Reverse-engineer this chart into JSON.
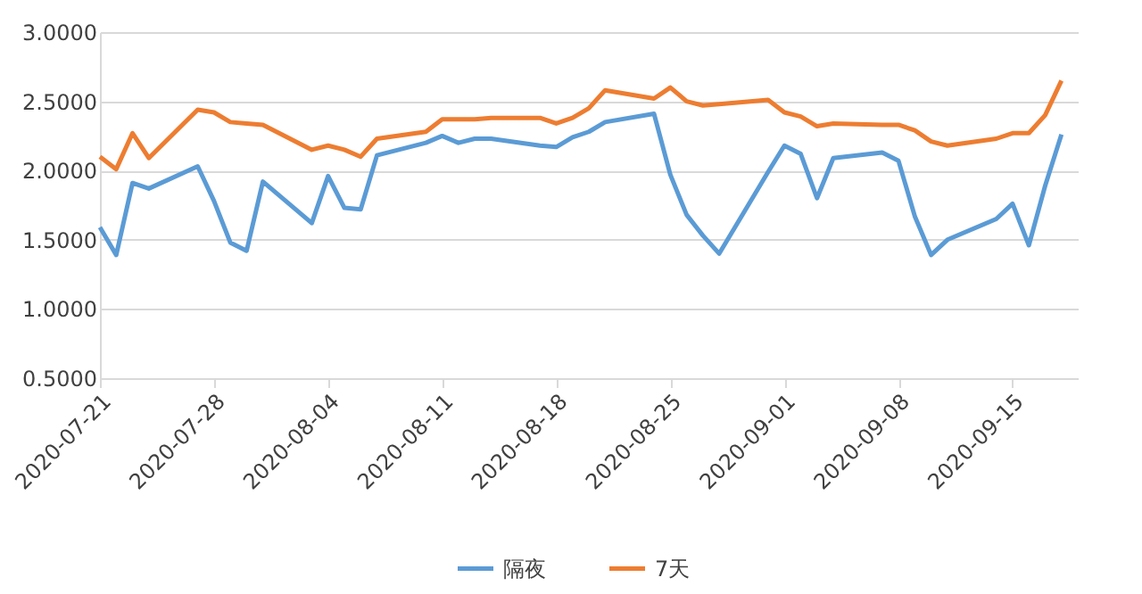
{
  "chart_data": {
    "type": "line",
    "x": [
      "2020-07-21",
      "2020-07-22",
      "2020-07-23",
      "2020-07-24",
      "2020-07-27",
      "2020-07-28",
      "2020-07-29",
      "2020-07-30",
      "2020-07-31",
      "2020-08-03",
      "2020-08-04",
      "2020-08-05",
      "2020-08-06",
      "2020-08-07",
      "2020-08-10",
      "2020-08-11",
      "2020-08-12",
      "2020-08-13",
      "2020-08-14",
      "2020-08-17",
      "2020-08-18",
      "2020-08-19",
      "2020-08-20",
      "2020-08-21",
      "2020-08-24",
      "2020-08-25",
      "2020-08-26",
      "2020-08-27",
      "2020-08-28",
      "2020-08-31",
      "2020-09-01",
      "2020-09-02",
      "2020-09-03",
      "2020-09-04",
      "2020-09-07",
      "2020-09-08",
      "2020-09-09",
      "2020-09-10",
      "2020-09-11",
      "2020-09-14",
      "2020-09-15",
      "2020-09-16",
      "2020-09-17",
      "2020-09-18"
    ],
    "series": [
      {
        "name": "隔夜",
        "color": "#5b9bd5",
        "values": [
          1.59,
          1.39,
          1.91,
          1.87,
          2.03,
          1.78,
          1.48,
          1.42,
          1.92,
          1.62,
          1.96,
          1.73,
          1.72,
          2.11,
          2.2,
          2.25,
          2.2,
          2.23,
          2.23,
          2.18,
          2.17,
          2.24,
          2.28,
          2.35,
          2.41,
          1.97,
          1.68,
          1.53,
          1.4,
          1.99,
          2.18,
          2.12,
          1.8,
          2.09,
          2.13,
          2.07,
          1.67,
          1.39,
          1.5,
          1.65,
          1.76,
          1.46,
          1.89,
          2.26
        ]
      },
      {
        "name": "7天",
        "color": "#ed7d31",
        "values": [
          2.1,
          2.01,
          2.27,
          2.09,
          2.44,
          2.42,
          2.35,
          2.34,
          2.33,
          2.15,
          2.18,
          2.15,
          2.1,
          2.23,
          2.28,
          2.37,
          2.37,
          2.37,
          2.38,
          2.38,
          2.34,
          2.38,
          2.45,
          2.58,
          2.52,
          2.6,
          2.5,
          2.47,
          2.48,
          2.51,
          2.42,
          2.39,
          2.32,
          2.34,
          2.33,
          2.33,
          2.29,
          2.21,
          2.18,
          2.23,
          2.27,
          2.27,
          2.4,
          2.65
        ]
      }
    ],
    "xlim": [
      "2020-07-21",
      "2020-09-19"
    ],
    "xticks": [
      "2020-07-21",
      "2020-07-28",
      "2020-08-04",
      "2020-08-11",
      "2020-08-18",
      "2020-08-25",
      "2020-09-01",
      "2020-09-08",
      "2020-09-15"
    ],
    "ylim": [
      0.5,
      3.0
    ],
    "yticks": [
      {
        "value": 0.5,
        "label": "0.5000"
      },
      {
        "value": 1.0,
        "label": "1.0000"
      },
      {
        "value": 1.5,
        "label": "1.5000"
      },
      {
        "value": 2.0,
        "label": "2.0000"
      },
      {
        "value": 2.5,
        "label": "2.5000"
      },
      {
        "value": 3.0,
        "label": "3.0000"
      }
    ],
    "grid": "y",
    "legend": "bottom",
    "marker": "none",
    "line_style": "solid"
  }
}
